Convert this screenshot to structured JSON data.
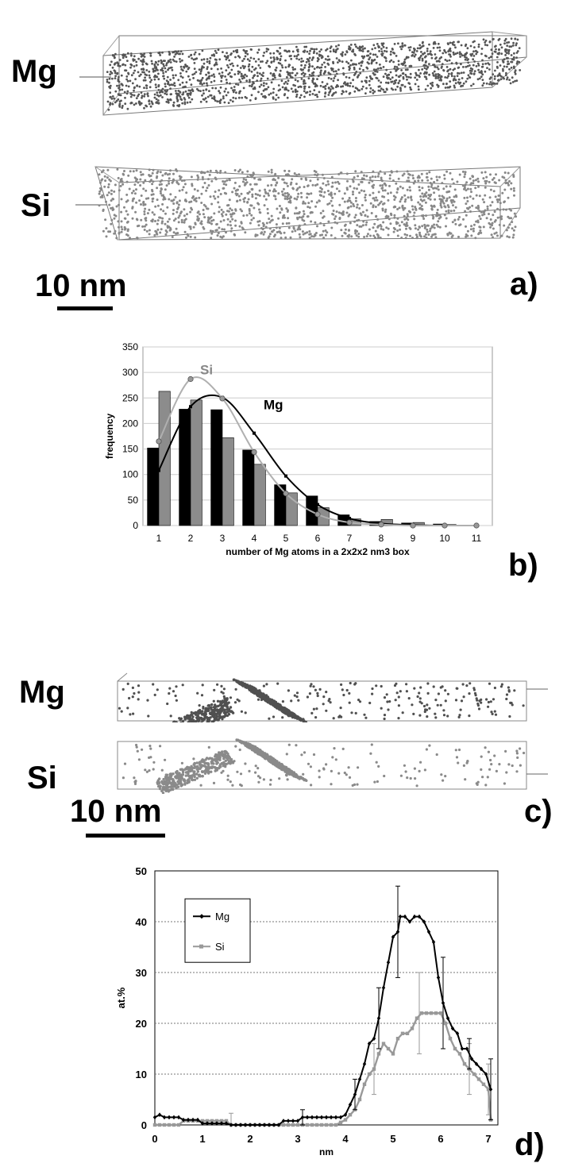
{
  "panel_a": {
    "label": "a)",
    "elements": [
      "Mg",
      "Si"
    ],
    "scale_label": "10 nm",
    "colors": {
      "Mg": "#555555",
      "Si": "#888888"
    }
  },
  "panel_c": {
    "label": "c)",
    "elements": [
      "Mg",
      "Si"
    ],
    "scale_label": "10 nm",
    "colors": {
      "Mg": "#505050",
      "Si": "#8a8a8a"
    }
  },
  "panel_b_label": "b)",
  "panel_d_label": "d)",
  "chart_data": [
    {
      "id": "b",
      "type": "bar",
      "xlabel": "number of Mg atoms in a 2x2x2 nm3 box",
      "ylabel": "frequency",
      "ylim": [
        0,
        350
      ],
      "yticks": [
        0,
        50,
        100,
        150,
        200,
        250,
        300,
        350
      ],
      "categories": [
        "1",
        "2",
        "3",
        "4",
        "5",
        "6",
        "7",
        "8",
        "9",
        "10",
        "11"
      ],
      "grid": true,
      "series": [
        {
          "name": "Mg",
          "color": "#000000",
          "values": [
            152,
            228,
            227,
            148,
            80,
            58,
            21,
            8,
            5,
            3,
            0
          ]
        },
        {
          "name": "Si",
          "color": "#8c8c8c",
          "values": [
            263,
            246,
            172,
            120,
            64,
            35,
            13,
            12,
            6,
            2,
            0
          ]
        }
      ],
      "fits": [
        {
          "name": "Mg",
          "color": "#000000",
          "points": [
            [
              1,
              108
            ],
            [
              2,
              233
            ],
            [
              3,
              251
            ],
            [
              4,
              181
            ],
            [
              5,
              97
            ],
            [
              6,
              41
            ],
            [
              7,
              14
            ],
            [
              8,
              4
            ],
            [
              9,
              1
            ],
            [
              10,
              0
            ],
            [
              11,
              0
            ]
          ]
        },
        {
          "name": "Si",
          "color": "#b0b0b0",
          "points": [
            [
              1,
              165
            ],
            [
              2,
              287
            ],
            [
              3,
              249
            ],
            [
              4,
              144
            ],
            [
              5,
              63
            ],
            [
              6,
              22
            ],
            [
              7,
              6
            ],
            [
              8,
              2
            ],
            [
              9,
              0
            ],
            [
              10,
              0
            ],
            [
              11,
              0
            ]
          ]
        }
      ],
      "annotations": [
        "Si",
        "Mg"
      ]
    },
    {
      "id": "d",
      "type": "line",
      "xlabel": "nm",
      "ylabel": "at.%",
      "xlim": [
        0,
        7.2
      ],
      "ylim": [
        0,
        50
      ],
      "xticks": [
        0,
        1,
        2,
        3,
        4,
        5,
        6,
        7
      ],
      "yticks": [
        0,
        10,
        20,
        30,
        40,
        50
      ],
      "grid": true,
      "legend": "top-left",
      "series": [
        {
          "name": "Mg",
          "color": "#000000",
          "marker": "diamond",
          "points": [
            [
              0,
              1.5
            ],
            [
              0.1,
              2
            ],
            [
              0.2,
              1.5
            ],
            [
              0.3,
              1.5
            ],
            [
              0.4,
              1.5
            ],
            [
              0.5,
              1.5
            ],
            [
              0.6,
              1
            ],
            [
              0.7,
              1
            ],
            [
              0.8,
              1
            ],
            [
              0.9,
              1
            ],
            [
              1.0,
              0.3
            ],
            [
              1.1,
              0.3
            ],
            [
              1.2,
              0.3
            ],
            [
              1.3,
              0.3
            ],
            [
              1.4,
              0.3
            ],
            [
              1.5,
              0.3
            ],
            [
              1.6,
              0
            ],
            [
              1.7,
              0
            ],
            [
              1.8,
              0
            ],
            [
              1.9,
              0
            ],
            [
              2.0,
              0
            ],
            [
              2.1,
              0
            ],
            [
              2.2,
              0
            ],
            [
              2.3,
              0
            ],
            [
              2.4,
              0
            ],
            [
              2.5,
              0
            ],
            [
              2.6,
              0
            ],
            [
              2.7,
              0.8
            ],
            [
              2.8,
              0.8
            ],
            [
              2.9,
              0.8
            ],
            [
              3.0,
              0.8
            ],
            [
              3.1,
              1.5
            ],
            [
              3.2,
              1.5
            ],
            [
              3.3,
              1.5
            ],
            [
              3.4,
              1.5
            ],
            [
              3.5,
              1.5
            ],
            [
              3.6,
              1.5
            ],
            [
              3.7,
              1.5
            ],
            [
              3.8,
              1.5
            ],
            [
              3.9,
              1.5
            ],
            [
              4.0,
              2
            ],
            [
              4.1,
              4
            ],
            [
              4.2,
              6
            ],
            [
              4.3,
              9
            ],
            [
              4.4,
              12
            ],
            [
              4.5,
              16
            ],
            [
              4.6,
              17
            ],
            [
              4.7,
              21
            ],
            [
              4.8,
              27
            ],
            [
              4.9,
              32
            ],
            [
              5.0,
              37
            ],
            [
              5.1,
              38
            ],
            [
              5.15,
              41
            ],
            [
              5.25,
              41
            ],
            [
              5.35,
              40
            ],
            [
              5.45,
              41
            ],
            [
              5.55,
              41
            ],
            [
              5.65,
              40
            ],
            [
              5.75,
              38
            ],
            [
              5.85,
              36
            ],
            [
              5.95,
              29
            ],
            [
              6.05,
              24
            ],
            [
              6.15,
              21
            ],
            [
              6.25,
              19
            ],
            [
              6.35,
              18
            ],
            [
              6.45,
              15
            ],
            [
              6.55,
              15
            ],
            [
              6.65,
              13
            ],
            [
              6.75,
              12
            ],
            [
              6.85,
              11
            ],
            [
              6.95,
              10
            ],
            [
              7.05,
              7
            ]
          ],
          "error_bars": [
            [
              3.1,
              1.5,
              1.5
            ],
            [
              4.2,
              6,
              3
            ],
            [
              4.7,
              21,
              6
            ],
            [
              5.1,
              38,
              9
            ],
            [
              6.05,
              24,
              9
            ],
            [
              6.6,
              14,
              3
            ],
            [
              7.05,
              7,
              6
            ]
          ]
        },
        {
          "name": "Si",
          "color": "#999999",
          "marker": "square",
          "points": [
            [
              0,
              0
            ],
            [
              0.1,
              0
            ],
            [
              0.2,
              0
            ],
            [
              0.3,
              0
            ],
            [
              0.4,
              0
            ],
            [
              0.5,
              0
            ],
            [
              0.6,
              0.8
            ],
            [
              0.7,
              0.8
            ],
            [
              0.8,
              0.8
            ],
            [
              0.9,
              0.8
            ],
            [
              1.0,
              0.8
            ],
            [
              1.1,
              0.8
            ],
            [
              1.2,
              0.8
            ],
            [
              1.3,
              0.8
            ],
            [
              1.4,
              0.8
            ],
            [
              1.5,
              0.8
            ],
            [
              1.6,
              0
            ],
            [
              1.7,
              0
            ],
            [
              1.8,
              0
            ],
            [
              1.9,
              0
            ],
            [
              2.0,
              0
            ],
            [
              2.1,
              0
            ],
            [
              2.2,
              0
            ],
            [
              2.3,
              0
            ],
            [
              2.4,
              0
            ],
            [
              2.5,
              0
            ],
            [
              2.6,
              0
            ],
            [
              2.7,
              0
            ],
            [
              2.8,
              0
            ],
            [
              2.9,
              0
            ],
            [
              3.0,
              0
            ],
            [
              3.1,
              0
            ],
            [
              3.2,
              0
            ],
            [
              3.3,
              0
            ],
            [
              3.4,
              0
            ],
            [
              3.5,
              0
            ],
            [
              3.6,
              0
            ],
            [
              3.7,
              0
            ],
            [
              3.8,
              0
            ],
            [
              3.9,
              0.5
            ],
            [
              4.0,
              1
            ],
            [
              4.1,
              2
            ],
            [
              4.2,
              3
            ],
            [
              4.3,
              5
            ],
            [
              4.4,
              8
            ],
            [
              4.5,
              10
            ],
            [
              4.6,
              11
            ],
            [
              4.7,
              14
            ],
            [
              4.8,
              16
            ],
            [
              4.9,
              15
            ],
            [
              5.0,
              14
            ],
            [
              5.1,
              17
            ],
            [
              5.2,
              18
            ],
            [
              5.3,
              18
            ],
            [
              5.4,
              19
            ],
            [
              5.5,
              21
            ],
            [
              5.6,
              22
            ],
            [
              5.7,
              22
            ],
            [
              5.8,
              22
            ],
            [
              5.9,
              22
            ],
            [
              6.0,
              22
            ],
            [
              6.1,
              20
            ],
            [
              6.2,
              17
            ],
            [
              6.3,
              15
            ],
            [
              6.4,
              14
            ],
            [
              6.5,
              12
            ],
            [
              6.6,
              11
            ],
            [
              6.7,
              10
            ],
            [
              6.8,
              9
            ],
            [
              6.9,
              8
            ],
            [
              7.0,
              7
            ],
            [
              7.05,
              1
            ]
          ],
          "error_bars": [
            [
              1.6,
              0.8,
              1.5
            ],
            [
              4.6,
              11,
              5
            ],
            [
              5.55,
              22,
              8
            ],
            [
              6.6,
              11,
              5
            ],
            [
              7.0,
              7,
              5
            ]
          ]
        }
      ]
    }
  ]
}
